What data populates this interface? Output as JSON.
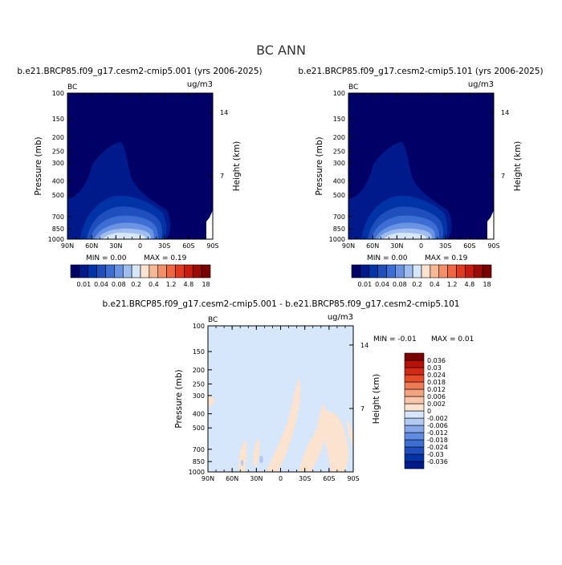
{
  "figure": {
    "title": "BC ANN"
  },
  "colors": {
    "field_levels": [
      "#000066",
      "#001a8c",
      "#0033a6",
      "#1f4fbd",
      "#3d6ed3",
      "#6a93e3",
      "#9fbdef",
      "#d6e6fb",
      "#fce3cf",
      "#f8b896",
      "#f48f6a",
      "#ee6743",
      "#e23a1d",
      "#c51c0f",
      "#9c0b06",
      "#7a0000"
    ],
    "diff_levels": [
      "#001a8c",
      "#0033a6",
      "#1f4fbd",
      "#3d6ed3",
      "#5f8be0",
      "#86a8ea",
      "#b3caf3",
      "#d6e6fb",
      "#fce3cf",
      "#f8c6a8",
      "#f4a37f",
      "#ef7a56",
      "#e64b2a",
      "#d22a14",
      "#b71208",
      "#7a0000"
    ]
  },
  "chart_data": [
    {
      "type": "heatmap",
      "title": "b.e21.BRCP85.f09_g17.cesm2-cmip5.001 (yrs 2006-2025)",
      "variable_label": "BC",
      "units_label": "ug/m3",
      "ylabel": "Pressure (mb)",
      "y2label": "Height (km)",
      "x_ticks": [
        "90N",
        "60N",
        "30N",
        "0",
        "30S",
        "60S",
        "90S"
      ],
      "y_ticks": [
        "100",
        "150",
        "200",
        "250",
        "300",
        "400",
        "500",
        "700",
        "850",
        "1000"
      ],
      "y2_ticks": [
        "14",
        "7"
      ],
      "min_text": "MIN =     0.00",
      "max_text": "MAX =     0.19",
      "colorbar_labels": [
        "0.01",
        "0.04",
        "0.08",
        "0.2",
        "0.4",
        "1.2",
        "4.8",
        "18"
      ]
    },
    {
      "type": "heatmap",
      "title": "b.e21.BRCP85.f09_g17.cesm2-cmip5.101 (yrs 2006-2025)",
      "variable_label": "BC",
      "units_label": "ug/m3",
      "ylabel": "Pressure (mb)",
      "y2label": "Height (km)",
      "x_ticks": [
        "90N",
        "60N",
        "30N",
        "0",
        "30S",
        "60S",
        "90S"
      ],
      "y_ticks": [
        "100",
        "150",
        "200",
        "250",
        "300",
        "400",
        "500",
        "700",
        "850",
        "1000"
      ],
      "y2_ticks": [
        "14",
        "7"
      ],
      "min_text": "MIN =     0.00",
      "max_text": "MAX =     0.19",
      "colorbar_labels": [
        "0.01",
        "0.04",
        "0.08",
        "0.2",
        "0.4",
        "1.2",
        "4.8",
        "18"
      ]
    },
    {
      "type": "heatmap",
      "title": "b.e21.BRCP85.f09_g17.cesm2-cmip5.001 - b.e21.BRCP85.f09_g17.cesm2-cmip5.101",
      "variable_label": "BC",
      "units_label": "ug/m3",
      "ylabel": "Pressure (mb)",
      "y2label": "Height (km)",
      "x_ticks": [
        "90N",
        "60N",
        "30N",
        "0",
        "30S",
        "60S",
        "90S"
      ],
      "y_ticks": [
        "100",
        "150",
        "200",
        "250",
        "300",
        "400",
        "500",
        "700",
        "850",
        "1000"
      ],
      "y2_ticks": [
        "14",
        "7"
      ],
      "min_text": "MIN =    -0.01",
      "max_text": "MAX =     0.01",
      "colorbar_labels": [
        "0.036",
        "0.03",
        "0.024",
        "0.018",
        "0.012",
        "0.006",
        "0.002",
        "0",
        "-0.002",
        "-0.006",
        "-0.012",
        "-0.018",
        "-0.024",
        "-0.03",
        "-0.036"
      ]
    }
  ]
}
